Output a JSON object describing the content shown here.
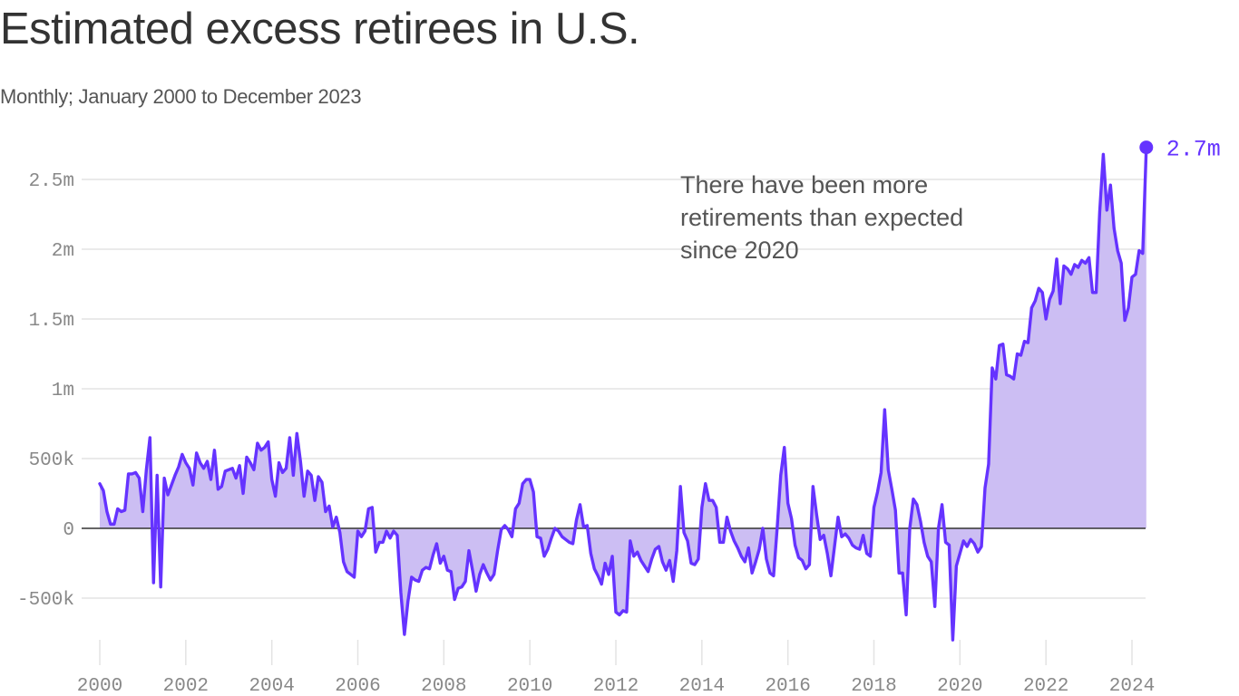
{
  "header": {
    "title": "Estimated excess retirees in U.S.",
    "subtitle": "Monthly; January 2000 to December 2023"
  },
  "chart_data": {
    "type": "area",
    "title": "Estimated excess retirees in U.S.",
    "subtitle": "Monthly; January 2000 to December 2023",
    "xlabel": "",
    "ylabel": "",
    "x_start": "2000-01",
    "x_end": "2023-12",
    "frequency": "monthly",
    "xlim": [
      2000,
      2024
    ],
    "ylim": [
      -900000,
      2800000
    ],
    "grid": true,
    "legend": "none",
    "x_ticks": [
      "2000",
      "2002",
      "2004",
      "2006",
      "2008",
      "2010",
      "2012",
      "2014",
      "2016",
      "2018",
      "2020",
      "2022",
      "2024"
    ],
    "x_tick_values": [
      2000,
      2002,
      2004,
      2006,
      2008,
      2010,
      2012,
      2014,
      2016,
      2018,
      2020,
      2022,
      2024
    ],
    "y_ticks": [
      "-500k",
      "0",
      "500k",
      "1m",
      "1.5m",
      "2m",
      "2.5m"
    ],
    "y_tick_values": [
      -500000,
      0,
      500000,
      1000000,
      1500000,
      2000000,
      2500000
    ],
    "annotation": {
      "lines": [
        "There have been more",
        "retirements than expected",
        "since 2020"
      ]
    },
    "end_label": "2.7m",
    "end_value": 2730000,
    "colors": {
      "line": "#6533ff",
      "area": "#c9bbf2",
      "zero_line": "#333333",
      "grid": "#e3e3e3",
      "tick_text": "#888888"
    },
    "series": [
      {
        "name": "Estimated excess retirees",
        "unit": "thousands",
        "values": [
          320,
          270,
          120,
          30,
          30,
          140,
          120,
          130,
          390,
          390,
          400,
          360,
          120,
          420,
          650,
          -390,
          380,
          -420,
          360,
          240,
          310,
          380,
          440,
          530,
          470,
          430,
          310,
          540,
          470,
          430,
          480,
          350,
          560,
          280,
          300,
          410,
          420,
          430,
          360,
          450,
          250,
          510,
          470,
          420,
          610,
          560,
          580,
          620,
          350,
          230,
          470,
          400,
          430,
          650,
          380,
          680,
          480,
          230,
          410,
          380,
          200,
          370,
          330,
          120,
          160,
          10,
          80,
          -30,
          -240,
          -310,
          -330,
          -350,
          -20,
          -60,
          -20,
          140,
          150,
          -170,
          -100,
          -100,
          -20,
          -70,
          -20,
          -50,
          -460,
          -760,
          -520,
          -350,
          -370,
          -380,
          -300,
          -280,
          -290,
          -190,
          -110,
          -250,
          -200,
          -300,
          -310,
          -510,
          -430,
          -420,
          -380,
          -160,
          -300,
          -450,
          -330,
          -260,
          -320,
          -370,
          -330,
          -160,
          -10,
          20,
          -10,
          -60,
          140,
          180,
          320,
          350,
          350,
          260,
          -60,
          -70,
          -200,
          -150,
          -70,
          0,
          -20,
          -60,
          -80,
          -100,
          -110,
          60,
          170,
          10,
          20,
          -180,
          -290,
          -340,
          -400,
          -250,
          -330,
          -200,
          -600,
          -620,
          -590,
          -600,
          -90,
          -200,
          -170,
          -230,
          -270,
          -310,
          -220,
          -150,
          -130,
          -240,
          -300,
          -230,
          -380,
          -160,
          300,
          -30,
          -90,
          -250,
          -260,
          -220,
          150,
          320,
          200,
          200,
          150,
          -100,
          -100,
          80,
          -20,
          -90,
          -140,
          -200,
          -240,
          -140,
          -320,
          -240,
          -150,
          0,
          -220,
          -320,
          -340,
          0,
          380,
          580,
          180,
          70,
          -120,
          -210,
          -230,
          -290,
          -260,
          300,
          100,
          -80,
          -50,
          -180,
          -340,
          -130,
          80,
          -60,
          -40,
          -70,
          -120,
          -140,
          -150,
          -50,
          -180,
          -200,
          150,
          260,
          400,
          850,
          420,
          280,
          130,
          -320,
          -320,
          -620,
          0,
          210,
          170,
          50,
          -100,
          -200,
          -240,
          -560,
          0,
          170,
          -100,
          -120,
          -800,
          -270,
          -180,
          -90,
          -130,
          -80,
          -110,
          -170,
          -130,
          290,
          460,
          1150,
          1070,
          1310,
          1320,
          1100,
          1090,
          1070,
          1250,
          1240,
          1340,
          1330,
          1580,
          1630,
          1720,
          1690,
          1500,
          1640,
          1700,
          1930,
          1610,
          1880,
          1860,
          1820,
          1890,
          1870,
          1920,
          1900,
          1940,
          1690,
          1690,
          2270,
          2680,
          2280,
          2460,
          2150,
          1990,
          1900,
          1490,
          1580,
          1800,
          1820,
          1990,
          1970,
          2730
        ]
      }
    ]
  }
}
